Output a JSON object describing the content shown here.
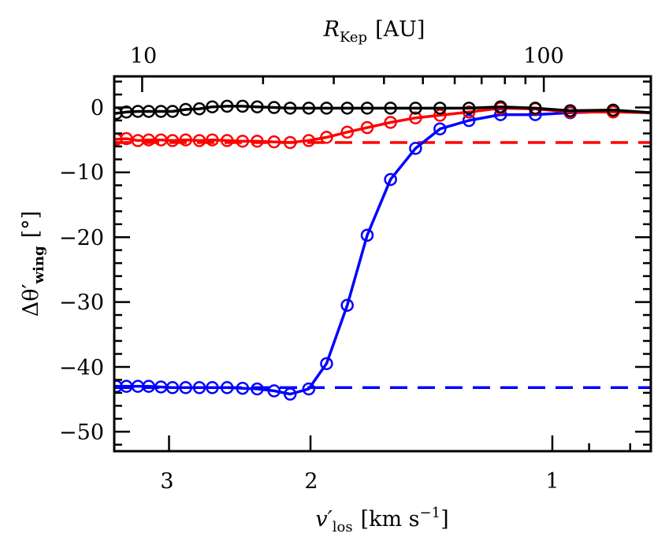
{
  "chart_data": {
    "type": "line",
    "xlabel": {
      "symbol": "v′",
      "sub": "los",
      "unit": "[km s",
      "sup": "−1",
      "close": "]"
    },
    "ylabel": {
      "symbol": "Δθ′",
      "sub": "wing",
      "unit": "[°]"
    },
    "top_xlabel": {
      "symbol": "R",
      "sub": "Kep",
      "unit": "[AU]"
    },
    "xscale": "log",
    "xreversed": true,
    "xlim": [
      3.51,
      0.754
    ],
    "ylim": [
      -53,
      4.8
    ],
    "xticks": [
      {
        "value": 3,
        "label": "3"
      },
      {
        "value": 2,
        "label": "2"
      },
      {
        "value": 1,
        "label": "1"
      }
    ],
    "top_axis": {
      "relation": "R_Kep = 105 / v'^2",
      "ticks": [
        {
          "value": 10,
          "label": "10"
        },
        {
          "value": 100,
          "label": "100"
        }
      ]
    },
    "yticks": [
      {
        "value": 0,
        "label": "0"
      },
      {
        "value": -10,
        "label": "−10"
      },
      {
        "value": -20,
        "label": "−20"
      },
      {
        "value": -30,
        "label": "−30"
      },
      {
        "value": -40,
        "label": "−40"
      },
      {
        "value": -50,
        "label": "−50"
      }
    ],
    "grid": false,
    "x": [
      3.49,
      3.39,
      3.28,
      3.18,
      3.07,
      2.97,
      2.86,
      2.75,
      2.65,
      2.54,
      2.43,
      2.33,
      2.22,
      2.12,
      2.01,
      1.91,
      1.8,
      1.7,
      1.59,
      1.48,
      1.38,
      1.27,
      1.16,
      1.05,
      0.95,
      0.84
    ],
    "series": [
      {
        "color": "#0000ff",
        "marker": "circle",
        "values": [
          -43.0,
          -43.0,
          -43.0,
          -43.0,
          -43.1,
          -43.2,
          -43.2,
          -43.2,
          -43.2,
          -43.2,
          -43.3,
          -43.4,
          -43.7,
          -44.2,
          -43.4,
          -39.5,
          -30.5,
          -19.7,
          -11.1,
          -6.3,
          -3.3,
          -2.0,
          -1.1,
          -1.1,
          -0.8,
          -0.6
        ],
        "end_value": -0.8,
        "reference": -43.2
      },
      {
        "color": "#ff0000",
        "marker": "circle",
        "values": [
          -4.9,
          -4.8,
          -5.1,
          -5.0,
          -5.0,
          -5.1,
          -5.0,
          -5.1,
          -5.0,
          -5.1,
          -5.2,
          -5.2,
          -5.3,
          -5.4,
          -5.1,
          -4.6,
          -3.8,
          -3.1,
          -2.3,
          -1.6,
          -1.2,
          -0.7,
          -0.1,
          -0.2,
          -0.7,
          -0.7
        ],
        "end_value": -0.8,
        "reference": -5.4
      },
      {
        "color": "#000000",
        "marker": "circle",
        "values": [
          -0.9,
          -0.7,
          -0.6,
          -0.6,
          -0.6,
          -0.6,
          -0.3,
          -0.2,
          0.1,
          0.2,
          0.2,
          0.1,
          0.0,
          -0.1,
          -0.1,
          -0.1,
          -0.1,
          -0.1,
          -0.1,
          -0.1,
          -0.1,
          -0.1,
          0.1,
          -0.1,
          -0.5,
          -0.4
        ],
        "end_value": -0.8
      }
    ]
  }
}
